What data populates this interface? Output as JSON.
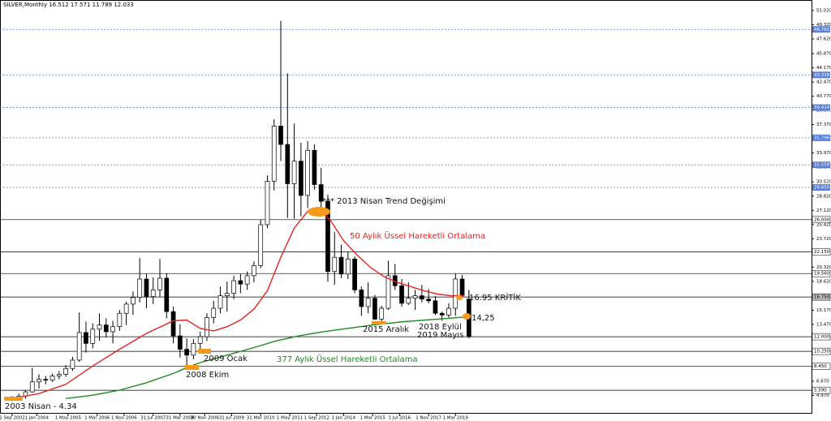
{
  "header": {
    "text": "SILVER,Monthly  16.512 17.571 11.789 12.033"
  },
  "chart_data": {
    "type": "candlestick",
    "xlim": [
      -5.4,
      357
    ],
    "ylim": [
      2.79,
      52.28
    ],
    "xticks": [
      {
        "value": 0,
        "label": "1 Sep 2002"
      },
      {
        "value": 11,
        "label": "1 Jan 2004"
      },
      {
        "value": 25,
        "label": "1 May 2005"
      },
      {
        "value": 38,
        "label": "1 Mar 2006"
      },
      {
        "value": 50,
        "label": "1 Nov 2006"
      },
      {
        "value": 63,
        "label": "31 Jul 2007"
      },
      {
        "value": 75,
        "label": "31 Mar 2008"
      },
      {
        "value": 86,
        "label": "30 Nov 2008"
      },
      {
        "value": 98,
        "label": "31 Jul 2009"
      },
      {
        "value": 111,
        "label": "31 Mar 2010"
      },
      {
        "value": 124,
        "label": "1 May 2011"
      },
      {
        "value": 136,
        "label": "1 Sep 2012"
      },
      {
        "value": 148,
        "label": "1 Jan 2014"
      },
      {
        "value": 161,
        "label": "1 Mar 2015"
      },
      {
        "value": 173,
        "label": "1 Jul 2016"
      },
      {
        "value": 186,
        "label": "1 Nov 2017"
      },
      {
        "value": 198,
        "label": "1 Mar 2019"
      }
    ],
    "yticks": [
      {
        "value": 51.02,
        "label": "51.020"
      },
      {
        "value": 49.32,
        "label": "49.320"
      },
      {
        "value": 47.62,
        "label": "47.620"
      },
      {
        "value": 45.87,
        "label": "45.870"
      },
      {
        "value": 44.17,
        "label": "44.170"
      },
      {
        "value": 42.47,
        "label": "42.470"
      },
      {
        "value": 40.77,
        "label": "40.770"
      },
      {
        "value": 39.07,
        "label": "39.070"
      },
      {
        "value": 37.37,
        "label": "37.370"
      },
      {
        "value": 35.67,
        "label": "35.670"
      },
      {
        "value": 33.97,
        "label": "33.970"
      },
      {
        "value": 32.27,
        "label": "32.270"
      },
      {
        "value": 30.52,
        "label": "30.520"
      },
      {
        "value": 28.82,
        "label": "28.820"
      },
      {
        "value": 27.12,
        "label": "27.120"
      },
      {
        "value": 25.42,
        "label": "25.420"
      },
      {
        "value": 23.72,
        "label": "23.720"
      },
      {
        "value": 22.02,
        "label": "22.020"
      },
      {
        "value": 20.32,
        "label": "20.320"
      },
      {
        "value": 18.62,
        "label": "18.620"
      },
      {
        "value": 16.87,
        "label": "16.870"
      },
      {
        "value": 15.17,
        "label": "15.170"
      },
      {
        "value": 13.47,
        "label": "13.470"
      },
      {
        "value": 11.77,
        "label": "11.770"
      },
      {
        "value": 10.07,
        "label": "10.070"
      },
      {
        "value": 8.37,
        "label": "8.370"
      },
      {
        "value": 6.67,
        "label": "6.670"
      },
      {
        "value": 4.97,
        "label": "4.970"
      }
    ],
    "dotted_levels": [
      {
        "value": 48.762,
        "label": "48.762"
      },
      {
        "value": 43.318,
        "label": "43.318"
      },
      {
        "value": 39.414,
        "label": "39.414"
      },
      {
        "value": 35.796,
        "label": "35.796"
      },
      {
        "value": 32.559,
        "label": "32.559"
      },
      {
        "value": 29.855,
        "label": "29.855"
      }
    ],
    "solid_levels": [
      {
        "value": 26,
        "label": "26.000"
      },
      {
        "value": 22.15,
        "label": "22.150"
      },
      {
        "value": 19.56,
        "label": "19.560"
      },
      {
        "value": 16.75,
        "label": "16.750"
      },
      {
        "value": 12,
        "label": "12.000"
      },
      {
        "value": 10.25,
        "label": "10.250"
      },
      {
        "value": 8.45,
        "label": "8.450"
      },
      {
        "value": 5.59,
        "label": "5.590"
      }
    ],
    "dotted_color": "#5b7fd6",
    "candles": {
      "x": [
        0,
        3,
        6,
        9,
        12,
        15,
        18,
        21,
        24,
        27,
        30,
        33,
        36,
        39,
        42,
        45,
        48,
        51,
        54,
        57,
        60,
        63,
        66,
        69,
        72,
        75,
        78,
        81,
        84,
        87,
        90,
        93,
        96,
        99,
        102,
        105,
        108,
        111,
        114,
        117,
        120,
        123,
        126,
        129,
        132,
        135,
        138,
        141,
        144,
        147,
        150,
        153,
        156,
        159,
        162,
        165,
        168,
        171,
        174,
        177,
        180,
        183,
        186,
        189,
        192,
        195,
        198,
        201,
        204
      ],
      "ohlc": [
        [
          4.4,
          4.9,
          4.3,
          4.7
        ],
        [
          4.7,
          5.2,
          4.4,
          4.9
        ],
        [
          4.9,
          5.6,
          4.6,
          5.4
        ],
        [
          5.4,
          8.3,
          5.3,
          6.6
        ],
        [
          6.6,
          7.5,
          5.8,
          6.9
        ],
        [
          6.9,
          7.3,
          6.3,
          6.8
        ],
        [
          6.8,
          7.6,
          6.6,
          7.3
        ],
        [
          7.3,
          7.9,
          6.9,
          7.5
        ],
        [
          7.5,
          8.6,
          7.2,
          8.2
        ],
        [
          8.2,
          9.6,
          7.9,
          9.2
        ],
        [
          9.2,
          14.9,
          9.0,
          12.5
        ],
        [
          12.5,
          13.8,
          10.1,
          11.2
        ],
        [
          11.2,
          13.6,
          10.6,
          12.9
        ],
        [
          12.9,
          14.8,
          11.5,
          13.4
        ],
        [
          13.4,
          14.2,
          11.9,
          12.6
        ],
        [
          12.6,
          13.9,
          11.2,
          13.2
        ],
        [
          13.2,
          15.2,
          12.7,
          14.8
        ],
        [
          14.8,
          16.2,
          13.4,
          15.9
        ],
        [
          15.9,
          17.4,
          14.6,
          16.7
        ],
        [
          16.7,
          21.4,
          16.1,
          18.9
        ],
        [
          18.9,
          19.5,
          15.4,
          16.8
        ],
        [
          16.8,
          19.1,
          15.9,
          17.6
        ],
        [
          17.6,
          21.3,
          16.8,
          19.0
        ],
        [
          19.0,
          19.6,
          14.2,
          15.0
        ],
        [
          15.0,
          15.6,
          11.2,
          12.1
        ],
        [
          12.1,
          13.5,
          9.5,
          10.5
        ],
        [
          10.5,
          11.8,
          8.4,
          9.8
        ],
        [
          9.8,
          11.7,
          9.3,
          11.2
        ],
        [
          11.2,
          12.6,
          10.2,
          12.0
        ],
        [
          12.0,
          14.8,
          11.5,
          14.3
        ],
        [
          14.3,
          16.3,
          13.6,
          15.4
        ],
        [
          15.4,
          18.0,
          14.8,
          16.9
        ],
        [
          16.9,
          18.6,
          15.0,
          17.2
        ],
        [
          17.2,
          19.3,
          16.5,
          18.7
        ],
        [
          18.7,
          19.5,
          17.2,
          18.3
        ],
        [
          18.3,
          19.8,
          17.6,
          19.3
        ],
        [
          19.3,
          21.0,
          18.5,
          20.5
        ],
        [
          20.5,
          26.0,
          20.2,
          25.4
        ],
        [
          25.4,
          31.3,
          25.0,
          30.6
        ],
        [
          30.6,
          38.0,
          29.5,
          37.2
        ],
        [
          37.2,
          49.8,
          33.0,
          35.0
        ],
        [
          35.0,
          43.5,
          26.2,
          30.3
        ],
        [
          30.3,
          37.5,
          26.1,
          33.0
        ],
        [
          33.0,
          35.2,
          26.4,
          28.9
        ],
        [
          28.9,
          35.4,
          27.4,
          34.3
        ],
        [
          34.3,
          35.0,
          29.6,
          30.2
        ],
        [
          30.2,
          32.2,
          27.5,
          28.2
        ],
        [
          28.2,
          29.0,
          18.6,
          19.8
        ],
        [
          19.8,
          24.5,
          18.2,
          21.5
        ],
        [
          21.5,
          23.0,
          19.0,
          19.5
        ],
        [
          19.5,
          22.2,
          18.9,
          21.3
        ],
        [
          21.3,
          21.6,
          17.2,
          17.6
        ],
        [
          17.6,
          18.0,
          14.5,
          15.6
        ],
        [
          15.6,
          18.5,
          14.8,
          16.6
        ],
        [
          16.6,
          17.0,
          14.0,
          14.1
        ],
        [
          14.1,
          15.7,
          13.7,
          15.4
        ],
        [
          15.4,
          21.1,
          15.2,
          19.3
        ],
        [
          19.3,
          20.7,
          17.6,
          18.1
        ],
        [
          18.1,
          18.9,
          15.6,
          16.0
        ],
        [
          16.0,
          18.5,
          15.8,
          16.6
        ],
        [
          16.6,
          17.6,
          15.2,
          16.9
        ],
        [
          16.9,
          18.2,
          16.1,
          16.5
        ],
        [
          16.5,
          17.7,
          16.0,
          16.3
        ],
        [
          16.3,
          16.9,
          14.6,
          14.8
        ],
        [
          14.8,
          15.0,
          13.9,
          14.6
        ],
        [
          14.6,
          16.0,
          14.3,
          15.4
        ],
        [
          15.4,
          19.6,
          14.5,
          18.9
        ],
        [
          18.9,
          19.4,
          16.7,
          17.0
        ],
        [
          16.5,
          17.6,
          11.8,
          12.0
        ]
      ]
    },
    "series": [
      {
        "color": "#e8231f",
        "x": [
          0,
          12,
          24,
          36,
          48,
          60,
          72,
          78,
          84,
          90,
          96,
          102,
          108,
          114,
          120,
          126,
          132,
          136,
          142,
          148,
          154,
          160,
          166,
          172,
          178,
          184,
          190,
          196,
          202
        ],
        "values": [
          4.6,
          5.2,
          6.3,
          8.5,
          10.5,
          12.4,
          13.9,
          14.0,
          13.0,
          12.7,
          13.2,
          14.0,
          15.3,
          17.5,
          21.5,
          25.0,
          27.0,
          27.3,
          26.0,
          23.5,
          21.8,
          20.3,
          19.2,
          18.5,
          18.0,
          17.5,
          17.1,
          16.9,
          16.9
        ]
      },
      {
        "color": "#1f8a1f",
        "x": [
          24,
          36,
          48,
          60,
          72,
          78,
          84,
          96,
          108,
          118,
          128,
          139,
          150,
          161,
          175,
          190,
          204
        ],
        "values": [
          4.6,
          5.0,
          5.6,
          6.5,
          7.6,
          8.3,
          8.9,
          9.8,
          10.7,
          11.5,
          12.1,
          12.6,
          13.0,
          13.4,
          13.8,
          14.1,
          14.4
        ]
      }
    ]
  },
  "annotations": {
    "trend": "*** 2013 Nisan Trend Değişimi",
    "ema50": "50 Aylık Üssel Hareketli Ortalama",
    "critical": "16.95 KRİTİK",
    "level1425": "14,25",
    "dec2015": "2015 Aralık",
    "sep2018": "2018 Eylül",
    "may2019": "2019 Mayıs",
    "jan2009": "2009 Ocak",
    "ema377": "377 Aylık Üssel Hareketli Ortalama",
    "oct2008": "2008 Ekim",
    "apr2003": "2003 Nisan - 4.34"
  }
}
